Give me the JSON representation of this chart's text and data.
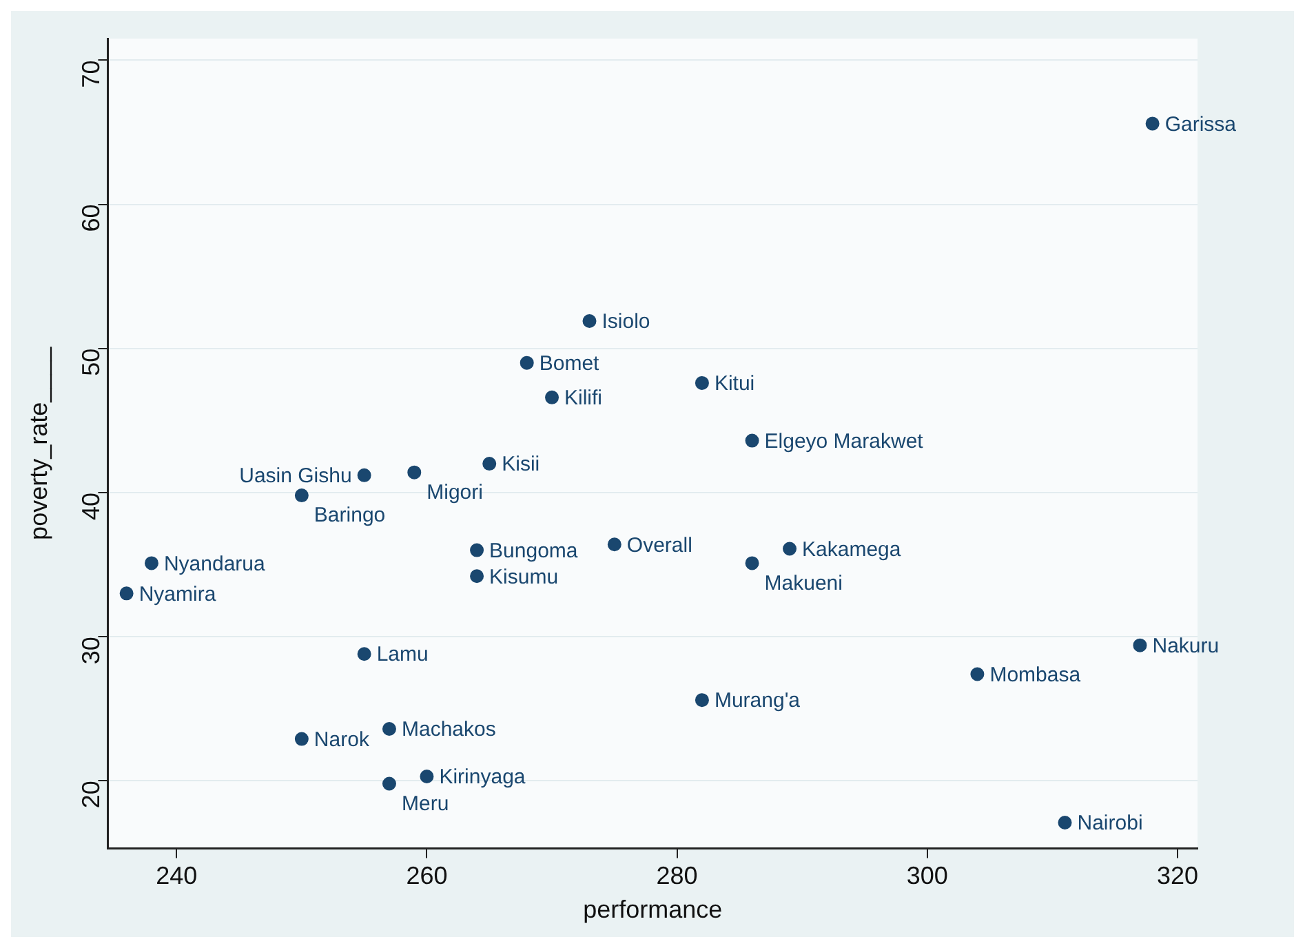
{
  "chart_data": {
    "type": "scatter",
    "xlabel": "performance",
    "ylabel": "poverty_rate____",
    "xlim": [
      234.5,
      321.6
    ],
    "ylim": [
      15.3,
      71.5
    ],
    "xticks": [
      240,
      260,
      280,
      300,
      320
    ],
    "yticks": [
      20,
      30,
      40,
      50,
      60,
      70
    ],
    "grid": "y",
    "legend": false,
    "marker": "circle",
    "series": [
      {
        "name": "Garissa",
        "color": "#1a476f",
        "x": [
          318
        ],
        "values": [
          65.6
        ]
      },
      {
        "name": "Isiolo",
        "color": "#1a476f",
        "x": [
          273
        ],
        "values": [
          51.9
        ]
      },
      {
        "name": "Bomet",
        "color": "#1a476f",
        "x": [
          268
        ],
        "values": [
          49.0
        ]
      },
      {
        "name": "Kilifi",
        "color": "#1a476f",
        "x": [
          270
        ],
        "values": [
          46.6
        ]
      },
      {
        "name": "Kitui",
        "color": "#1a476f",
        "x": [
          282
        ],
        "values": [
          47.6
        ]
      },
      {
        "name": "Elgeyo Marakwet",
        "color": "#1a476f",
        "x": [
          286
        ],
        "values": [
          43.6
        ]
      },
      {
        "name": "Kisii",
        "color": "#1a476f",
        "x": [
          265
        ],
        "values": [
          42.0
        ]
      },
      {
        "name": "Migori",
        "color": "#1a476f",
        "x": [
          259
        ],
        "values": [
          41.4
        ]
      },
      {
        "name": "Uasin Gishu",
        "color": "#1a476f",
        "x": [
          255
        ],
        "values": [
          41.2
        ]
      },
      {
        "name": "Baringo",
        "color": "#1a476f",
        "x": [
          250
        ],
        "values": [
          39.8
        ]
      },
      {
        "name": "Bungoma",
        "color": "#1a476f",
        "x": [
          264
        ],
        "values": [
          36.0
        ]
      },
      {
        "name": "Overall",
        "color": "#1a476f",
        "x": [
          275
        ],
        "values": [
          36.4
        ]
      },
      {
        "name": "Kakamega",
        "color": "#1a476f",
        "x": [
          289
        ],
        "values": [
          36.1
        ]
      },
      {
        "name": "Makueni",
        "color": "#1a476f",
        "x": [
          286
        ],
        "values": [
          35.1
        ]
      },
      {
        "name": "Kisumu",
        "color": "#1a476f",
        "x": [
          264
        ],
        "values": [
          34.2
        ]
      },
      {
        "name": "Nyandarua",
        "color": "#1a476f",
        "x": [
          238
        ],
        "values": [
          35.1
        ]
      },
      {
        "name": "Nyamira",
        "color": "#1a476f",
        "x": [
          236
        ],
        "values": [
          33.0
        ]
      },
      {
        "name": "Nakuru",
        "color": "#1a476f",
        "x": [
          317
        ],
        "values": [
          29.4
        ]
      },
      {
        "name": "Lamu",
        "color": "#1a476f",
        "x": [
          255
        ],
        "values": [
          28.8
        ]
      },
      {
        "name": "Mombasa",
        "color": "#1a476f",
        "x": [
          304
        ],
        "values": [
          27.4
        ]
      },
      {
        "name": "Murang'a",
        "color": "#1a476f",
        "x": [
          282
        ],
        "values": [
          25.6
        ]
      },
      {
        "name": "Machakos",
        "color": "#1a476f",
        "x": [
          257
        ],
        "values": [
          23.6
        ]
      },
      {
        "name": "Narok",
        "color": "#1a476f",
        "x": [
          250
        ],
        "values": [
          22.9
        ]
      },
      {
        "name": "Kirinyaga",
        "color": "#1a476f",
        "x": [
          260
        ],
        "values": [
          20.3
        ]
      },
      {
        "name": "Meru",
        "color": "#1a476f",
        "x": [
          257
        ],
        "values": [
          19.8
        ]
      },
      {
        "name": "Nairobi",
        "color": "#1a476f",
        "x": [
          311
        ],
        "values": [
          17.1
        ]
      }
    ]
  }
}
